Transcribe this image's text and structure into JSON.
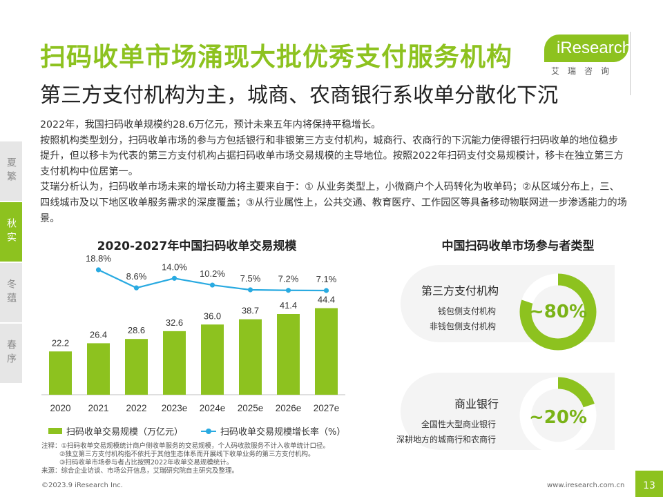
{
  "header": {
    "title": "扫码收单市场涌现大批优秀支付服务机构",
    "subtitle": "第三方支付机构为主，城商、农商银行系收单分散化下沉"
  },
  "logo": {
    "brand": "iResearch",
    "sub": "艾瑞咨询"
  },
  "body": {
    "p1": "2022年，我国扫码收单规模约28.6万亿元，预计未来五年内将保持平稳增长。",
    "p2": "按照机构类型划分，扫码收单市场的参与方包括银行和非银第三方支付机构，城商行、农商行的下沉能力使得银行扫码收单的地位稳步提升，但以移卡为代表的第三方支付机构占据扫码收单市场交易规模的主导地位。按照2022年扫码支付交易规模计，移卡在独立第三方支付机构中位居第一。",
    "p3": "艾瑞分析认为，扫码收单市场未来的增长动力将主要来自于：① 从业务类型上，小微商户个人码转化为收单码；②从区域分布上，三、四线城市及以下地区收单服务需求的深度覆盖；③从行业属性上，公共交通、教育医疗、工作园区等具备移动物联网进一步渗透能力的场景。"
  },
  "side_tabs": [
    {
      "label": "夏繁",
      "active": false
    },
    {
      "label": "秋实",
      "active": true
    },
    {
      "label": "冬蕴",
      "active": false
    },
    {
      "label": "春序",
      "active": false
    }
  ],
  "chart_data": {
    "type": "bar",
    "title": "2020-2027年中国扫码收单交易规模",
    "categories": [
      "2020",
      "2021",
      "2022",
      "2023e",
      "2024e",
      "2025e",
      "2026e",
      "2027e"
    ],
    "series": [
      {
        "name": "扫码收单交易规模（万亿元）",
        "type": "bar",
        "values": [
          22.2,
          26.4,
          28.6,
          32.6,
          36.0,
          38.7,
          41.4,
          44.4
        ]
      },
      {
        "name": "扫码收单交易规模增长率（%）",
        "type": "line",
        "values": [
          null,
          18.8,
          8.6,
          14.0,
          10.2,
          7.5,
          7.2,
          7.1
        ]
      }
    ],
    "bar_labels": [
      "22.2",
      "26.4",
      "28.6",
      "32.6",
      "36.0",
      "38.7",
      "41.4",
      "44.4"
    ],
    "line_labels": [
      "",
      "18.8%",
      "8.6%",
      "14.0%",
      "10.2%",
      "7.5%",
      "7.2%",
      "7.1%"
    ],
    "grid": false,
    "legend_position": "bottom",
    "colors": {
      "bar": "#8dc21f",
      "line": "#29aae1"
    }
  },
  "legend": {
    "bar": "扫码收单交易规模（万亿元）",
    "line": "扫码收单交易规模增长率（%）"
  },
  "notes": {
    "n1": "注释：①扫码收单交易规模统计商户侧收单服务的交易规模，个人码收款服务不计入收单统计口径。",
    "n2": "②独立第三方支付机构指不依托于其他生态体系而开展线下收单业务的第三方支付机构。",
    "n3": "③扫码收单市场参与者占比按照2022年收单交易规模统计。",
    "source": "来源：综合企业访谈、市场公开信息，艾瑞研究院自主研究及整理。"
  },
  "participants": {
    "title": "中国扫码收单市场参与者类型",
    "groups": [
      {
        "name": "第三方支付机构",
        "items": [
          "钱包侧支付机构",
          "非钱包侧支付机构"
        ],
        "share_label": "~80%",
        "share": 0.8
      },
      {
        "name": "商业银行",
        "items": [
          "全国性大型商业银行",
          "深耕地方的城商行和农商行"
        ],
        "share_label": "~20%",
        "share": 0.2
      }
    ],
    "colors": {
      "ring": "#8dc21f",
      "track": "#ffffff"
    }
  },
  "footer": {
    "copyright": "©2023.9 iResearch Inc.",
    "url": "www.iresearch.com.cn",
    "page": "13"
  }
}
